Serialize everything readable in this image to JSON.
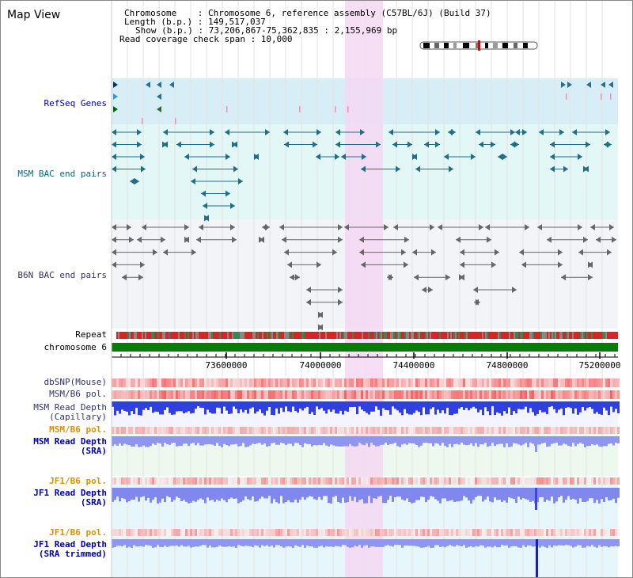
{
  "header": {
    "title": "Map View",
    "chromosome": "Chromosome    : Chromosome 6, reference assembly (C57BL/6J) (Build 37)",
    "length": "Length (b.p.) : 149,517,037",
    "show": "Show (b.p.) : 73,206,867-75,362,835 : 2,155,969 bp",
    "coverage": "Read coverage check span : 10,000"
  },
  "tracks": {
    "refseq": "RefSeq Genes",
    "msm_bac": "MSM BAC end pairs",
    "b6n_bac": "B6N BAC end pairs",
    "repeat": "Repeat",
    "chromosome": "chromosome 6",
    "dbsnp": "dbSNP(Mouse)",
    "msm_b6_pol_1": "MSM/B6 pol.",
    "msm_read_depth_cap_1": "MSM Read Depth",
    "msm_read_depth_cap_2": "(Capillary)",
    "msm_b6_pol_2": "MSM/B6 pol.",
    "msm_read_depth_sra_1": "MSM Read Depth",
    "msm_read_depth_sra_2": "(SRA)",
    "jf1_b6_pol_1": "JF1/B6 pol.",
    "jf1_read_depth_sra_1": "JF1 Read Depth",
    "jf1_read_depth_sra_2": "(SRA)",
    "jf1_b6_pol_2": "JF1/B6 pol.",
    "jf1_read_depth_trim_1": "JF1 Read Depth",
    "jf1_read_depth_trim_2": "(SRA trimmed)"
  },
  "axis": {
    "ticks": [
      "73600000",
      "74000000",
      "74400000",
      "74800000",
      "75200000"
    ]
  },
  "colors": {
    "highlight": "#f5d8f3",
    "refseq_band": "#d7eef7",
    "msm_band": "#e3f7f7",
    "b6n_band": "#f2f4f7",
    "chrom_green": "#0a7a0a",
    "label_blue": "#0000aa",
    "label_teal": "#006b7a",
    "label_orange": "#e09000",
    "label_navy": "#333366"
  }
}
